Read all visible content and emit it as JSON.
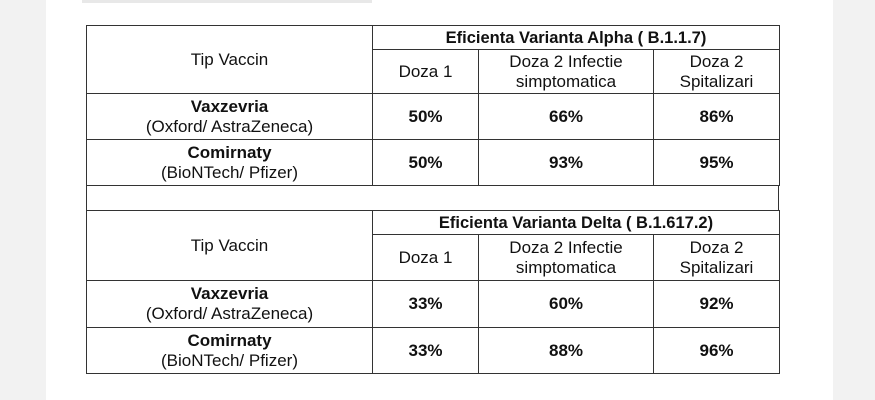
{
  "alpha": {
    "header": "Eficienta Varianta Alpha ( B.1.1.7)",
    "col_type": "Tip Vaccin",
    "col_dose1": "Doza 1",
    "col_dose2_inf": "Doza 2 Infectie simptomatica",
    "col_dose2_hosp": "Doza 2 Spitalizari",
    "rows": [
      {
        "name": "Vaxzevria",
        "maker": "(Oxford/ AstraZeneca)",
        "dose1": "50%",
        "dose2_inf": "66%",
        "dose2_hosp": "86%"
      },
      {
        "name": "Comirnaty",
        "maker": "(BioNTech/ Pfizer)",
        "dose1": "50%",
        "dose2_inf": "93%",
        "dose2_hosp": "95%"
      }
    ]
  },
  "delta": {
    "header": "Eficienta Varianta Delta ( B.1.617.2)",
    "col_type": "Tip Vaccin",
    "col_dose1": "Doza 1",
    "col_dose2_inf": "Doza 2 Infectie simptomatica",
    "col_dose2_hosp": "Doza 2 Spitalizari",
    "rows": [
      {
        "name": "Vaxzevria",
        "maker": "(Oxford/ AstraZeneca)",
        "dose1": "33%",
        "dose2_inf": "60%",
        "dose2_hosp": "92%"
      },
      {
        "name": "Comirnaty",
        "maker": "(BioNTech/ Pfizer)",
        "dose1": "33%",
        "dose2_inf": "88%",
        "dose2_hosp": "96%"
      }
    ]
  }
}
